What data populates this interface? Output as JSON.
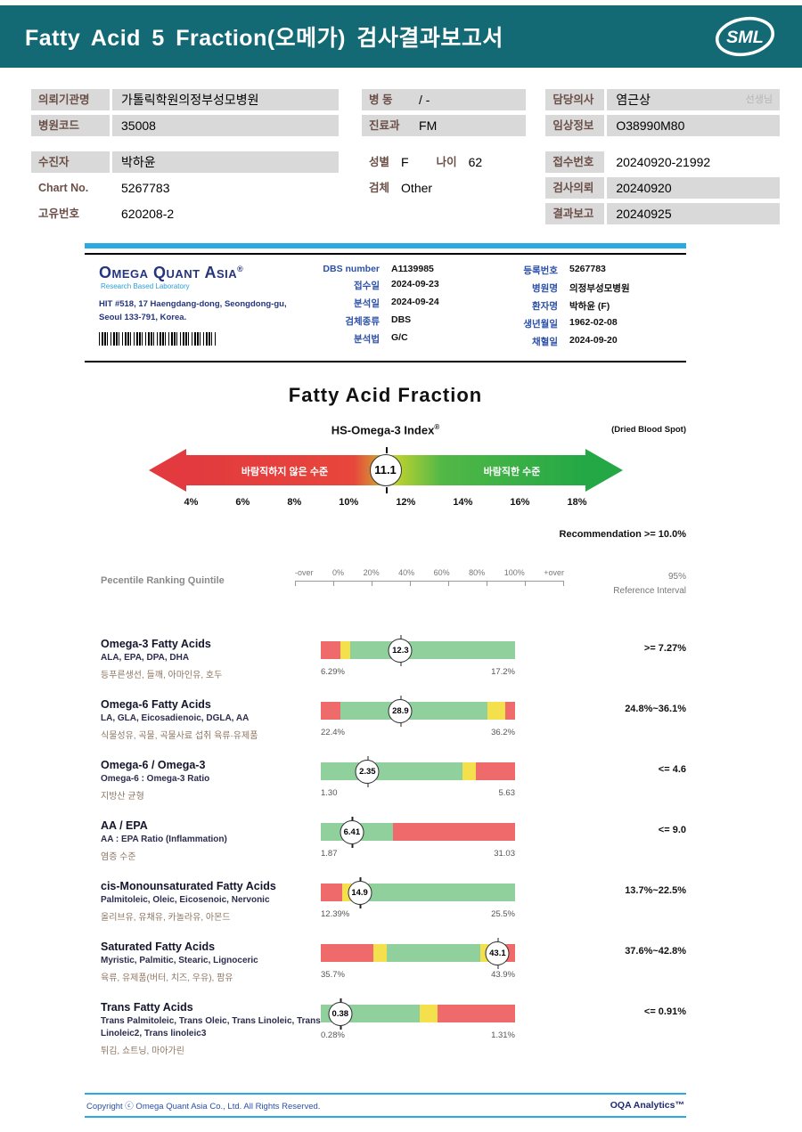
{
  "header": {
    "title": "Fatty Acid 5 Fraction(오메가) 검사결과보고서",
    "logo_text": "SML"
  },
  "patient": {
    "left": [
      {
        "label": "의뢰기관명",
        "value": "가톨릭학원의정부성모병원"
      },
      {
        "label": "병원코드",
        "value": "35008"
      },
      {
        "label": "수진자",
        "value": "박하윤"
      },
      {
        "label": "Chart No.",
        "value": "5267783"
      },
      {
        "label": "고유번호",
        "value": "620208-2"
      }
    ],
    "middle": [
      {
        "label": "병 동",
        "value": "/ -"
      },
      {
        "label": "진료과",
        "value": "FM"
      },
      {
        "label": "성별",
        "value": "F",
        "label2": "나이",
        "value2": "62"
      },
      {
        "label": "검체",
        "value": "Other"
      }
    ],
    "right": [
      {
        "label": "담당의사",
        "value": "염근상",
        "suffix": "선생님"
      },
      {
        "label": "임상정보",
        "value": "O38990M80"
      },
      {
        "label": "접수번호",
        "value": "20240920-21992"
      },
      {
        "label": "검사의뢰",
        "value": "20240920"
      },
      {
        "label": "결과보고",
        "value": "20240925"
      }
    ]
  },
  "lab": {
    "logo": "Omega Quant Asia",
    "logo_reg": "®",
    "logo_sub": "Research Based Laboratory",
    "address1": "HIT #518, 17 Haengdang-dong, Seongdong-gu,",
    "address2": "Seoul 133-791, Korea.",
    "mid": [
      {
        "label": "DBS number",
        "value": "A1139985"
      },
      {
        "label": "접수일",
        "value": "2024-09-23"
      },
      {
        "label": "분석일",
        "value": "2024-09-24"
      },
      {
        "label": "검체종류",
        "value": "DBS"
      },
      {
        "label": "분석법",
        "value": "G/C"
      }
    ],
    "right": [
      {
        "label": "등록번호",
        "value": "5267783"
      },
      {
        "label": "병원명",
        "value": "의정부성모병원"
      },
      {
        "label": "환자명",
        "value": "박하윤 (F)"
      },
      {
        "label": "생년월일",
        "value": "1962-02-08"
      },
      {
        "label": "채혈일",
        "value": "2024-09-20"
      }
    ]
  },
  "section": {
    "title": "Fatty Acid Fraction"
  },
  "gauge": {
    "title": "HS-Omega-3 Index",
    "reg": "®",
    "note": "(Dried Blood Spot)",
    "value": "11.1",
    "marker_pct": 50,
    "left_label": "바람직하지 않은 수준",
    "right_label": "바람직한 수준",
    "ticks": [
      "4%",
      "6%",
      "8%",
      "10%",
      "12%",
      "14%",
      "16%",
      "18%"
    ],
    "recommendation": "Recommendation  >= 10.0%"
  },
  "ranking": {
    "title": "Pecentile Ranking Quintile",
    "ticks": [
      "-over",
      "0%",
      "20%",
      "40%",
      "60%",
      "80%",
      "100%",
      "+over"
    ],
    "ref_top": "95%",
    "ref_bottom": "Reference Interval"
  },
  "rows": [
    {
      "name": "Omega-3 Fatty Acids",
      "sub": "ALA, EPA, DPA, DHA",
      "desc": "등푸른생선, 들깨, 아마인유, 호두",
      "value": "12.3",
      "min": "6.29%",
      "max": "17.2%",
      "ref": ">= 7.27%",
      "marker_pct": 41,
      "segments": [
        {
          "color": "#ef6b6b",
          "pct": 10
        },
        {
          "color": "#f4e04c",
          "pct": 5
        },
        {
          "color": "#8fd09d",
          "pct": 85
        }
      ]
    },
    {
      "name": "Omega-6 Fatty Acids",
      "sub": "LA, GLA, Eicosadienoic, DGLA, AA",
      "desc": "식물성유, 곡물, 곡물사료 섭취 육류·유제품",
      "value": "28.9",
      "min": "22.4%",
      "max": "36.2%",
      "ref": "24.8%~36.1%",
      "marker_pct": 41,
      "segments": [
        {
          "color": "#ef6b6b",
          "pct": 10
        },
        {
          "color": "#8fd09d",
          "pct": 76
        },
        {
          "color": "#f4e04c",
          "pct": 9
        },
        {
          "color": "#ef6b6b",
          "pct": 5
        }
      ]
    },
    {
      "name": "Omega-6 / Omega-3",
      "sub": "Omega-6 : Omega-3 Ratio",
      "desc": "지방산 균형",
      "value": "2.35",
      "min": "1.30",
      "max": "5.63",
      "ref": "<= 4.6",
      "marker_pct": 24,
      "segments": [
        {
          "color": "#8fd09d",
          "pct": 73
        },
        {
          "color": "#f4e04c",
          "pct": 7
        },
        {
          "color": "#ef6b6b",
          "pct": 20
        }
      ]
    },
    {
      "name": "AA / EPA",
      "sub": "AA : EPA Ratio (Inflammation)",
      "desc": "염증 수준",
      "value": "6.41",
      "min": "1.87",
      "max": "31.03",
      "ref": "<= 9.0",
      "marker_pct": 16,
      "segments": [
        {
          "color": "#8fd09d",
          "pct": 37
        },
        {
          "color": "#ef6b6b",
          "pct": 63
        }
      ]
    },
    {
      "name": "cis-Monounsaturated Fatty Acids",
      "sub": "Palmitoleic, Oleic, Eicosenoic, Nervonic",
      "desc": "올리브유, 유채유, 카놀라유, 아몬드",
      "value": "14.9",
      "min": "12.39%",
      "max": "25.5%",
      "ref": "13.7%~22.5%",
      "marker_pct": 20,
      "segments": [
        {
          "color": "#ef6b6b",
          "pct": 11
        },
        {
          "color": "#f4e04c",
          "pct": 10
        },
        {
          "color": "#8fd09d",
          "pct": 79
        }
      ]
    },
    {
      "name": "Saturated Fatty Acids",
      "sub": "Myristic, Palmitic, Stearic, Lignoceric",
      "desc": "육류, 유제품(버터, 치즈, 우유), 팜유",
      "value": "43.1",
      "min": "35.7%",
      "max": "43.9%",
      "ref": "37.6%~42.8%",
      "marker_pct": 91,
      "segments": [
        {
          "color": "#ef6b6b",
          "pct": 27
        },
        {
          "color": "#f4e04c",
          "pct": 7
        },
        {
          "color": "#8fd09d",
          "pct": 48
        },
        {
          "color": "#f4e04c",
          "pct": 5
        },
        {
          "color": "#ef6b6b",
          "pct": 13
        }
      ]
    },
    {
      "name": "Trans Fatty Acids",
      "sub": "Trans Palmitoleic, Trans Oleic, Trans Linoleic, Trans Linoleic2, Trans linoleic3",
      "desc": "튀김, 쇼트닝, 마아가린",
      "value": "0.38",
      "min": "0.28%",
      "max": "1.31%",
      "ref": "<= 0.91%",
      "marker_pct": 10,
      "segments": [
        {
          "color": "#8fd09d",
          "pct": 51
        },
        {
          "color": "#f4e04c",
          "pct": 9
        },
        {
          "color": "#ef6b6b",
          "pct": 40
        }
      ]
    }
  ],
  "footer": {
    "copyright": "Copyright ⓒ Omega Quant Asia Co., Ltd.  All Rights Reserved.",
    "brand": "OQA Analytics™"
  }
}
